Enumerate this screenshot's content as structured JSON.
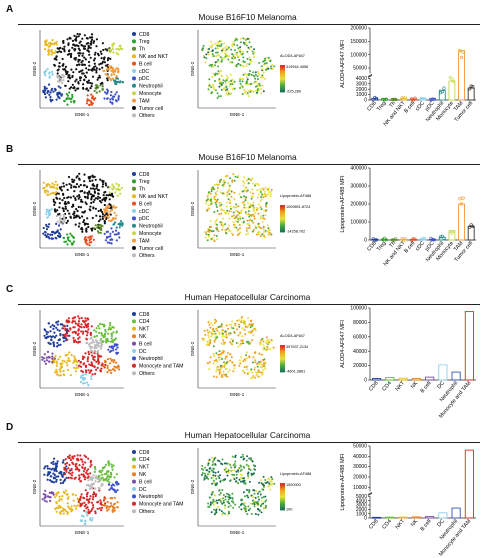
{
  "panels": [
    {
      "label": "A",
      "title": "Mouse B16F10 Melanoma",
      "legend": [
        "CD8",
        "Treg",
        "Th",
        "NK and NKT",
        "B cell",
        "cDC",
        "pDC",
        "Neutrophil",
        "Monocyte",
        "TAM",
        "Tumor cell",
        "Others"
      ],
      "legend_colors": [
        "#1f3d99",
        "#2ca02c",
        "#5a8a2a",
        "#e8b820",
        "#e64e1f",
        "#8fd0e8",
        "#3c50c8",
        "#2a8a8a",
        "#c8d84a",
        "#f09a3a",
        "#111111",
        "#bbbbbb"
      ],
      "tsne_xlabel": "tSNE-1",
      "tsne_ylabel": "tSNE-2",
      "feature_name": "ALOD4-AF647",
      "feature_max": "319944.4556",
      "feature_min": "-225,289",
      "scale": [
        "#c81e1e",
        "#f0a020",
        "#e8e040",
        "#4aaa40",
        "#1a6a5a"
      ],
      "ylabel": "ALOD4-AF647 MFI"
    },
    {
      "label": "B",
      "title": "Mouse B16F10 Melanoma",
      "legend": [
        "CD8",
        "Treg",
        "Th",
        "NK and NKT",
        "B cell",
        "cDC",
        "pDC",
        "Neutrophil",
        "Monocyte",
        "TAM",
        "Tumor cell",
        "Others"
      ],
      "legend_colors": [
        "#1f3d99",
        "#2ca02c",
        "#5a8a2a",
        "#e8b820",
        "#e64e1f",
        "#8fd0e8",
        "#3c50c8",
        "#2a8a8a",
        "#c8d84a",
        "#f09a3a",
        "#111111",
        "#bbbbbb"
      ],
      "tsne_xlabel": "tSNE-1",
      "tsne_ylabel": "tSNE-2",
      "feature_name": "Lipoprotein-AF488",
      "feature_max": "1009891.8724",
      "feature_min": "-14258.762",
      "scale": [
        "#c81e1e",
        "#f0a020",
        "#e8e040",
        "#4aaa40",
        "#1a6a5a"
      ],
      "ylabel": "Lipoprotein-AF488 MFI"
    },
    {
      "label": "C",
      "title": "Human Hepatocellular Carcinoma",
      "legend": [
        "CD8",
        "CD4",
        "NKT",
        "NK",
        "B cell",
        "DC",
        "Neutrophil",
        "Monocyte and TAM",
        "Others"
      ],
      "legend_colors": [
        "#1f3d99",
        "#6abf3a",
        "#e8b820",
        "#e67e22",
        "#7b4fa8",
        "#8fd0e8",
        "#3c50c8",
        "#d62828",
        "#bbbbbb"
      ],
      "tsne_xlabel": "tSNE-1",
      "tsne_ylabel": "tSNE-2",
      "feature_name": "ALOD4-AF647",
      "feature_max": "397637.2134",
      "feature_min": "-4601.3881",
      "scale": [
        "#c81e1e",
        "#f0a020",
        "#e8e040",
        "#4aaa40",
        "#1a6a5a"
      ],
      "ylabel": "ALOD4-AF647 MFI"
    },
    {
      "label": "D",
      "title": "Human Hepatocellular Carcinoma",
      "legend": [
        "CD8",
        "CD4",
        "NKT",
        "NK",
        "B cell",
        "DC",
        "Neutrophil",
        "Monocyte and TAM",
        "Others"
      ],
      "legend_colors": [
        "#1f3d99",
        "#6abf3a",
        "#e8b820",
        "#e67e22",
        "#7b4fa8",
        "#8fd0e8",
        "#3c50c8",
        "#d62828",
        "#bbbbbb"
      ],
      "tsne_xlabel": "tSNE-1",
      "tsne_ylabel": "tSNE-2",
      "feature_name": "Lipoprotein-AF488",
      "feature_max": "1000000",
      "feature_min": "100",
      "scale": [
        "#c81e1e",
        "#f0a020",
        "#e8e040",
        "#4aaa40",
        "#1a6a5a"
      ],
      "ylabel": "Lipoprotein-AF488 MFI"
    }
  ],
  "chart_data": [
    {
      "type": "bar",
      "panel": "A",
      "categories": [
        "CD8",
        "Treg",
        "Th",
        "NK and NKT",
        "B cell",
        "cDC",
        "pDC",
        "Neutrophil",
        "Monocyte",
        "TAM",
        "Tumor cell"
      ],
      "values": [
        300,
        250,
        200,
        300,
        200,
        300,
        250,
        1800,
        3500,
        115000,
        2200
      ],
      "ylabel": "ALOD4-AF647 MFI",
      "y_ticks_lower": [
        0,
        1000,
        2000,
        3000,
        4000
      ],
      "y_ticks_upper": [
        50000,
        100000,
        150000,
        200000
      ],
      "axis_break": true,
      "colors": [
        "#1f3d99",
        "#2ca02c",
        "#5a8a2a",
        "#e8b820",
        "#e64e1f",
        "#8fd0e8",
        "#3c50c8",
        "#2a8a8a",
        "#c8d84a",
        "#f09a3a",
        "#333333"
      ]
    },
    {
      "type": "bar",
      "panel": "B",
      "categories": [
        "CD8",
        "Treg",
        "Th",
        "NK and NKT",
        "B cell",
        "cDC",
        "pDC",
        "Neutrophil",
        "Monocyte",
        "TAM",
        "Tumor cell"
      ],
      "values": [
        4000,
        3500,
        3000,
        4000,
        3500,
        4000,
        3500,
        15000,
        50000,
        200000,
        75000
      ],
      "ylabel": "Lipoprotein-AF488 MFI",
      "y_ticks": [
        0,
        100000,
        200000,
        300000,
        400000
      ],
      "ylim": [
        0,
        400000
      ],
      "colors": [
        "#1f3d99",
        "#2ca02c",
        "#5a8a2a",
        "#e8b820",
        "#e64e1f",
        "#8fd0e8",
        "#3c50c8",
        "#2a8a8a",
        "#c8d84a",
        "#f09a3a",
        "#333333"
      ]
    },
    {
      "type": "bar",
      "panel": "C",
      "categories": [
        "CD8",
        "CD4",
        "NKT",
        "NK",
        "B cell",
        "DC",
        "Neutrophil",
        "Monocyte and TAM"
      ],
      "values": [
        2000,
        3500,
        2500,
        2000,
        4000,
        21000,
        11000,
        95000
      ],
      "ylabel": "ALOD4-AF647 MFI",
      "y_ticks": [
        0,
        20000,
        40000,
        60000,
        80000,
        100000
      ],
      "ylim": [
        0,
        100000
      ],
      "colors": [
        "#1f3d99",
        "#6abf3a",
        "#e8b820",
        "#e67e22",
        "#7b4fa8",
        "#8fd0e8",
        "#3c50c8",
        "#d62828"
      ]
    },
    {
      "type": "bar",
      "panel": "D",
      "categories": [
        "CD8",
        "CD4",
        "NKT",
        "NK",
        "B cell",
        "DC",
        "Neutrophil",
        "Monocyte and TAM"
      ],
      "values": [
        150,
        200,
        200,
        250,
        350,
        1200,
        2300,
        46000
      ],
      "ylabel": "Lipoprotein-AF488 MFI",
      "y_ticks_lower": [
        0,
        1000,
        2000,
        3000,
        4000,
        5000
      ],
      "y_ticks_upper": [
        10000,
        20000,
        30000,
        40000,
        50000
      ],
      "axis_break": true,
      "colors": [
        "#1f3d99",
        "#6abf3a",
        "#e8b820",
        "#e67e22",
        "#7b4fa8",
        "#8fd0e8",
        "#3c50c8",
        "#d62828"
      ]
    }
  ]
}
